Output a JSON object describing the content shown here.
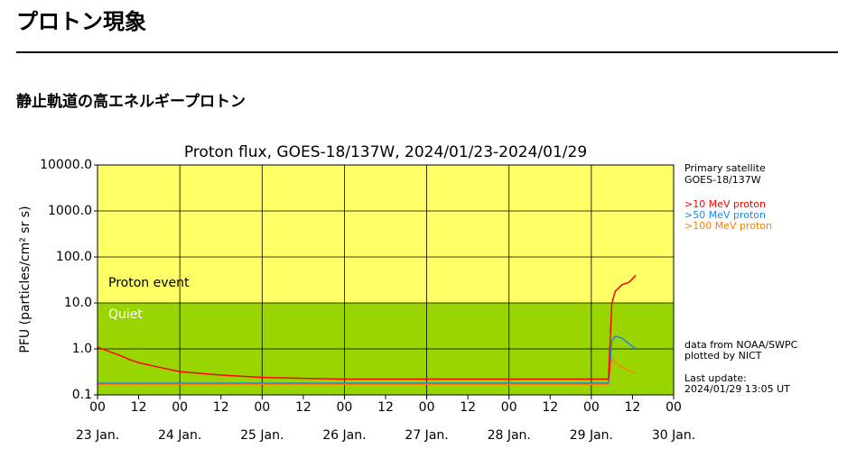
{
  "header": {
    "title": "プロトン現象",
    "subtitle": "静止軌道の高エネルギープロトン"
  },
  "chart_data": {
    "type": "line",
    "title": "Proton flux, GOES-18/137W, 2024/01/23-2024/01/29",
    "y_label": "PFU (particles/cm² sr s)",
    "log_y": true,
    "grid": true,
    "x": [
      0,
      3,
      6,
      9,
      12,
      18,
      24,
      36,
      48,
      60,
      72,
      84,
      96,
      108,
      120,
      132,
      144,
      147,
      149,
      150,
      151,
      153,
      155,
      157
    ],
    "xlim": [
      0,
      168
    ],
    "xticks": [
      {
        "value": 0,
        "label": "00"
      },
      {
        "value": 12,
        "label": "12"
      },
      {
        "value": 24,
        "label": "00"
      },
      {
        "value": 36,
        "label": "12"
      },
      {
        "value": 48,
        "label": "00"
      },
      {
        "value": 60,
        "label": "12"
      },
      {
        "value": 72,
        "label": "00"
      },
      {
        "value": 84,
        "label": "12"
      },
      {
        "value": 96,
        "label": "00"
      },
      {
        "value": 108,
        "label": "12"
      },
      {
        "value": 120,
        "label": "00"
      },
      {
        "value": 132,
        "label": "12"
      },
      {
        "value": 144,
        "label": "00"
      },
      {
        "value": 156,
        "label": "12"
      },
      {
        "value": 168,
        "label": "00"
      }
    ],
    "xdates": [
      {
        "value": 0,
        "label": "23 Jan."
      },
      {
        "value": 24,
        "label": "24 Jan."
      },
      {
        "value": 48,
        "label": "25 Jan."
      },
      {
        "value": 72,
        "label": "26 Jan."
      },
      {
        "value": 96,
        "label": "27 Jan."
      },
      {
        "value": 120,
        "label": "28 Jan."
      },
      {
        "value": 144,
        "label": "29 Jan."
      },
      {
        "value": 168,
        "label": "30 Jan."
      }
    ],
    "ylim": [
      0.1,
      10000
    ],
    "yticks": [
      0.1,
      {
        "value": 1,
        "label": "1.0"
      },
      {
        "value": 10,
        "label": "10.0"
      },
      {
        "value": 100,
        "label": "100.0"
      },
      {
        "value": 1000,
        "label": "1000.0"
      },
      {
        "value": 10000,
        "label": "10000.0"
      }
    ],
    "regions": [
      {
        "label": "Proton event",
        "from": 10,
        "to": 10000,
        "color": "#ffff66"
      },
      {
        "label": "Quiet",
        "from": 0.1,
        "to": 10,
        "color": "#99d600"
      }
    ],
    "series": [
      {
        "name": ">10 MeV proton",
        "color": "#ff0000",
        "values": [
          1.1,
          0.9,
          0.75,
          0.6,
          0.5,
          0.4,
          0.32,
          0.27,
          0.24,
          0.23,
          0.22,
          0.22,
          0.22,
          0.22,
          0.22,
          0.22,
          0.22,
          0.22,
          0.22,
          10,
          18,
          25,
          28,
          40
        ]
      },
      {
        "name": ">50 MeV proton",
        "color": "#1e88e5",
        "values": [
          0.18,
          0.18,
          0.18,
          0.18,
          0.18,
          0.18,
          0.18,
          0.18,
          0.18,
          0.18,
          0.18,
          0.18,
          0.18,
          0.18,
          0.18,
          0.18,
          0.18,
          0.18,
          0.18,
          1.5,
          1.9,
          1.7,
          1.3,
          1.0
        ]
      },
      {
        "name": ">100 MeV proton",
        "color": "#ff8000",
        "values": [
          0.17,
          0.17,
          0.17,
          0.17,
          0.17,
          0.17,
          0.17,
          0.17,
          0.17,
          0.17,
          0.17,
          0.17,
          0.17,
          0.17,
          0.17,
          0.17,
          0.17,
          0.17,
          0.17,
          0.6,
          0.5,
          0.4,
          0.33,
          0.3
        ]
      }
    ],
    "info": {
      "satellite_heading": "Primary satellite",
      "satellite": "GOES-18/137W",
      "source": "data from NOAA/SWPC",
      "plotted": "plotted by NICT",
      "update_heading": "Last update:",
      "update": "2024/01/29 13:05 UT"
    }
  }
}
